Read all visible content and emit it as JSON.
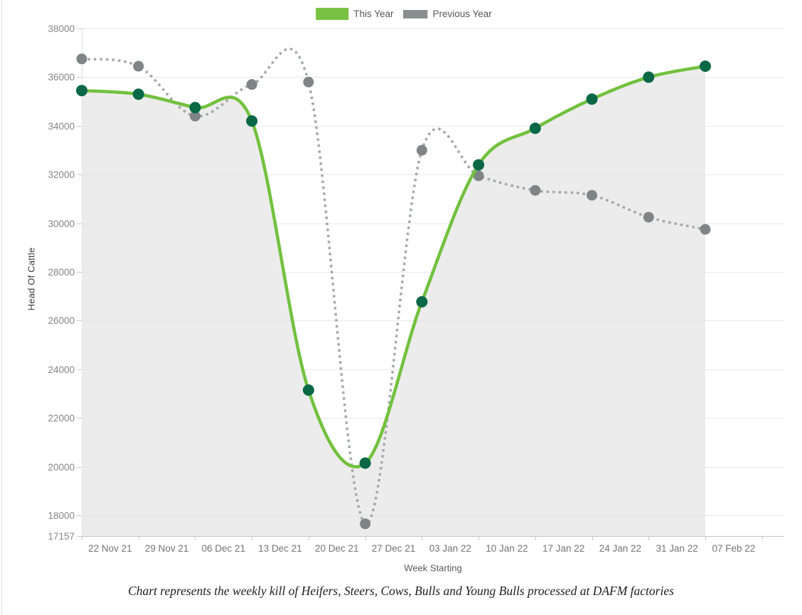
{
  "page": {
    "caption": "Chart represents the weekly kill of Heifers, Steers, Cows, Bulls and Young Bulls processed at DAFM factories"
  },
  "chart_data": {
    "type": "line",
    "title": "",
    "xlabel": "Week Starting",
    "ylabel": "Head Of Cattle",
    "categories": [
      "22 Nov 21",
      "29 Nov 21",
      "06 Dec 21",
      "13 Dec 21",
      "20 Dec 21",
      "27 Dec 21",
      "03 Jan 22",
      "10 Jan 22",
      "17 Jan 22",
      "24 Jan 22",
      "31 Jan 22",
      "07 Feb 22"
    ],
    "series": [
      {
        "name": "This Year",
        "style": "solid",
        "color": "#72c13e",
        "marker_color": "#0a6847",
        "marker_radius": 8,
        "fill": "rgba(229,229,229,0.73)",
        "values": [
          35450,
          35300,
          34750,
          34200,
          23150,
          20150,
          26775,
          32400,
          33900,
          35100,
          36000,
          36450
        ]
      },
      {
        "name": "Previous Year",
        "style": "dotted",
        "color": "#a4a8a7",
        "marker_color": "#7f8584",
        "marker_radius": 7.5,
        "fill": null,
        "values": [
          36750,
          36450,
          34400,
          35700,
          35800,
          17657,
          33000,
          31950,
          31350,
          31150,
          30250,
          29750
        ]
      }
    ],
    "ylim": [
      17157,
      38000
    ],
    "yticks": [
      38000,
      36000,
      34000,
      32000,
      30000,
      28000,
      26000,
      24000,
      22000,
      20000,
      18000,
      17157
    ],
    "legend_position": "top-center",
    "grid": "horizontal"
  }
}
